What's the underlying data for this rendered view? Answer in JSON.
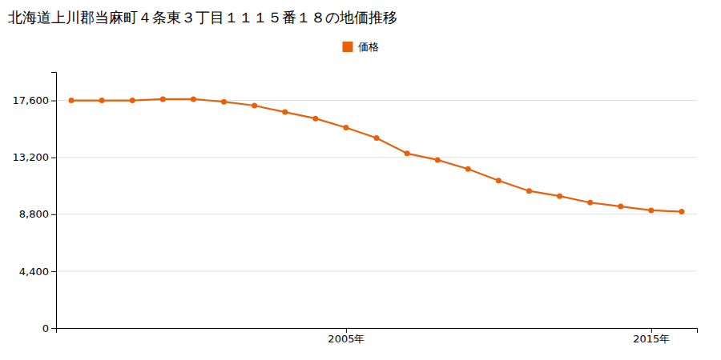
{
  "chart_data": {
    "type": "line",
    "title": "北海道上川郡当麻町４条東３丁目１１１５番１８の地価推移",
    "x": [
      1996,
      1997,
      1998,
      1999,
      2000,
      2001,
      2002,
      2003,
      2004,
      2005,
      2006,
      2007,
      2008,
      2009,
      2010,
      2011,
      2012,
      2013,
      2014,
      2015,
      2016
    ],
    "series": [
      {
        "name": "価格",
        "color": "#e8610a",
        "marker": "circle",
        "values": [
          17600,
          17600,
          17600,
          17700,
          17700,
          17500,
          17200,
          16700,
          16200,
          15500,
          14700,
          13500,
          13000,
          12300,
          11400,
          10600,
          10200,
          9700,
          9400,
          9100,
          9000
        ]
      }
    ],
    "xlim": [
      1995.5,
      2016.5
    ],
    "xticks": [
      {
        "value": 2005,
        "label": "2005年"
      },
      {
        "value": 2015,
        "label": "2015年"
      }
    ],
    "ylim": [
      0,
      19800
    ],
    "yticks": [
      0,
      {
        "value": 4400,
        "label": "4,400"
      },
      {
        "value": 8800,
        "label": "8,800"
      },
      {
        "value": 13200,
        "label": "13,200"
      },
      {
        "value": 17600,
        "label": "17,600"
      }
    ],
    "grid": true,
    "legend": "top"
  }
}
